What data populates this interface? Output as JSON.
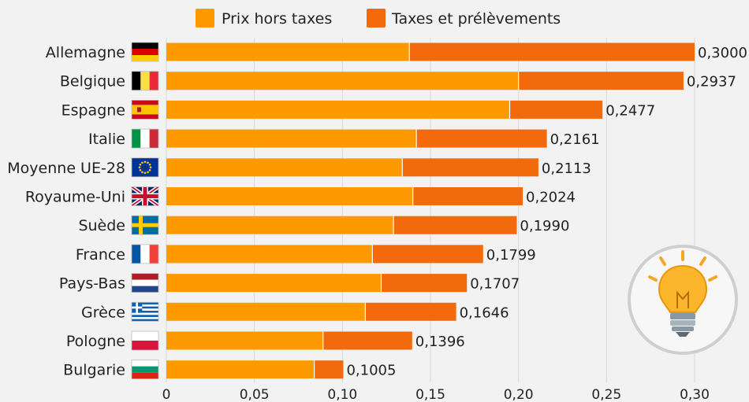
{
  "legend": {
    "pre_tax": "Prix hors taxes",
    "taxes": "Taxes et prélèvements"
  },
  "colors": {
    "pre_tax": "#fe9a00",
    "taxes": "#f26a0b",
    "background": "#f2f2f2",
    "grid": "#d8d8d8"
  },
  "chart_data": {
    "type": "bar",
    "orientation": "horizontal",
    "stacked": true,
    "categories": [
      "Allemagne",
      "Belgique",
      "Espagne",
      "Italie",
      "Moyenne UE-28",
      "Royaume-Uni",
      "Suède",
      "France",
      "Pays-Bas",
      "Grèce",
      "Pologne",
      "Bulgarie"
    ],
    "flags": [
      "de",
      "be",
      "es",
      "it",
      "eu",
      "uk",
      "se",
      "fr",
      "nl",
      "gr",
      "pl",
      "bg"
    ],
    "series": [
      {
        "name": "Prix hors taxes",
        "values": [
          0.138,
          0.2,
          0.195,
          0.142,
          0.134,
          0.14,
          0.129,
          0.117,
          0.122,
          0.113,
          0.089,
          0.084
        ]
      },
      {
        "name": "Taxes et prélèvements",
        "values": [
          0.162,
          0.0937,
          0.0527,
          0.0741,
          0.0773,
          0.0624,
          0.07,
          0.0629,
          0.0487,
          0.0516,
          0.0506,
          0.0165
        ]
      }
    ],
    "totals": [
      0.3,
      0.2937,
      0.2477,
      0.2161,
      0.2113,
      0.2024,
      0.199,
      0.1799,
      0.1707,
      0.1646,
      0.1396,
      0.1005
    ],
    "total_labels": [
      "0,3000",
      "0,2937",
      "0,2477",
      "0,2161",
      "0,2113",
      "0,2024",
      "0,1990",
      "0,1799",
      "0,1707",
      "0,1646",
      "0,1396",
      "0,1005"
    ],
    "xticks": [
      0,
      0.05,
      0.1,
      0.15,
      0.2,
      0.25,
      0.3
    ],
    "xtick_labels": [
      "0",
      "0,05",
      "0,10",
      "0,15",
      "0,20",
      "0,25",
      "0,30"
    ],
    "xlim": [
      0,
      0.3
    ],
    "grid": true,
    "legend_position": "top"
  }
}
